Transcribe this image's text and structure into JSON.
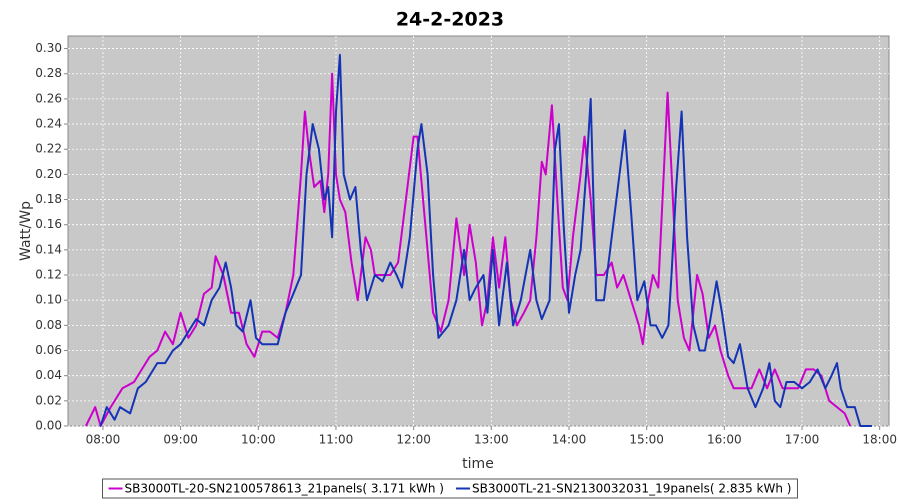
{
  "chart_data": {
    "type": "line",
    "title": "24-2-2023",
    "x_label": "time",
    "y_label": "Watt/Wp",
    "xlim": [
      7.55,
      18.12
    ],
    "ylim": [
      0,
      0.31
    ],
    "xticks": [
      {
        "value": 8,
        "label": "08:00"
      },
      {
        "value": 9,
        "label": "09:00"
      },
      {
        "value": 10,
        "label": "10:00"
      },
      {
        "value": 11,
        "label": "11:00"
      },
      {
        "value": 12,
        "label": "12:00"
      },
      {
        "value": 13,
        "label": "13:00"
      },
      {
        "value": 14,
        "label": "14:00"
      },
      {
        "value": 15,
        "label": "15:00"
      },
      {
        "value": 16,
        "label": "16:00"
      },
      {
        "value": 17,
        "label": "17:00"
      },
      {
        "value": 18,
        "label": "18:00"
      }
    ],
    "yticks": [
      {
        "value": 0,
        "label": "0.00"
      },
      {
        "value": 0.02,
        "label": "0.02"
      },
      {
        "value": 0.04,
        "label": "0.04"
      },
      {
        "value": 0.06,
        "label": "0.06"
      },
      {
        "value": 0.08,
        "label": "0.08"
      },
      {
        "value": 0.1,
        "label": "0.10"
      },
      {
        "value": 0.12,
        "label": "0.12"
      },
      {
        "value": 0.14,
        "label": "0.14"
      },
      {
        "value": 0.16,
        "label": "0.16"
      },
      {
        "value": 0.18,
        "label": "0.18"
      },
      {
        "value": 0.2,
        "label": "0.20"
      },
      {
        "value": 0.22,
        "label": "0.22"
      },
      {
        "value": 0.24,
        "label": "0.24"
      },
      {
        "value": 0.26,
        "label": "0.26"
      },
      {
        "value": 0.28,
        "label": "0.28"
      },
      {
        "value": 0.3,
        "label": "0.30"
      }
    ],
    "grid": true,
    "legend": "bottom",
    "series": [
      {
        "name": "SB3000TL-20-SN2100578613_21panels( 3.171 kWh )",
        "color": "#cc00cc",
        "x": [
          7.78,
          7.9,
          7.97,
          8.1,
          8.25,
          8.4,
          8.5,
          8.6,
          8.7,
          8.8,
          8.9,
          9.0,
          9.1,
          9.2,
          9.3,
          9.4,
          9.45,
          9.55,
          9.65,
          9.75,
          9.85,
          9.95,
          10.05,
          10.15,
          10.25,
          10.35,
          10.45,
          10.55,
          10.6,
          10.65,
          10.72,
          10.8,
          10.85,
          10.9,
          10.95,
          11.0,
          11.05,
          11.12,
          11.2,
          11.28,
          11.38,
          11.45,
          11.5,
          11.6,
          11.7,
          11.8,
          11.9,
          12.0,
          12.05,
          12.15,
          12.25,
          12.35,
          12.45,
          12.55,
          12.65,
          12.72,
          12.8,
          12.88,
          12.95,
          13.02,
          13.1,
          13.18,
          13.25,
          13.33,
          13.42,
          13.5,
          13.58,
          13.65,
          13.7,
          13.78,
          13.85,
          13.92,
          13.98,
          14.05,
          14.15,
          14.2,
          14.28,
          14.35,
          14.45,
          14.55,
          14.62,
          14.7,
          14.8,
          14.9,
          14.95,
          15.02,
          15.08,
          15.15,
          15.22,
          15.27,
          15.33,
          15.4,
          15.48,
          15.55,
          15.6,
          15.65,
          15.72,
          15.8,
          15.88,
          15.95,
          16.05,
          16.12,
          16.25,
          16.35,
          16.45,
          16.55,
          16.65,
          16.75,
          16.85,
          16.95,
          17.05,
          17.15,
          17.25,
          17.35,
          17.45,
          17.55,
          17.62
        ],
        "values": [
          0,
          0.015,
          0,
          0.015,
          0.03,
          0.035,
          0.045,
          0.055,
          0.06,
          0.075,
          0.065,
          0.09,
          0.07,
          0.08,
          0.105,
          0.11,
          0.135,
          0.12,
          0.09,
          0.09,
          0.065,
          0.055,
          0.075,
          0.075,
          0.07,
          0.09,
          0.12,
          0.2,
          0.25,
          0.22,
          0.19,
          0.195,
          0.17,
          0.2,
          0.28,
          0.2,
          0.18,
          0.17,
          0.13,
          0.1,
          0.15,
          0.14,
          0.12,
          0.12,
          0.12,
          0.13,
          0.18,
          0.23,
          0.23,
          0.16,
          0.09,
          0.075,
          0.1,
          0.165,
          0.12,
          0.16,
          0.13,
          0.08,
          0.1,
          0.15,
          0.11,
          0.15,
          0.1,
          0.08,
          0.09,
          0.1,
          0.15,
          0.21,
          0.2,
          0.255,
          0.18,
          0.11,
          0.1,
          0.15,
          0.2,
          0.23,
          0.18,
          0.12,
          0.12,
          0.13,
          0.11,
          0.12,
          0.1,
          0.08,
          0.065,
          0.1,
          0.12,
          0.11,
          0.2,
          0.265,
          0.19,
          0.1,
          0.07,
          0.06,
          0.09,
          0.12,
          0.105,
          0.07,
          0.08,
          0.06,
          0.04,
          0.03,
          0.03,
          0.03,
          0.045,
          0.03,
          0.045,
          0.03,
          0.03,
          0.03,
          0.045,
          0.045,
          0.04,
          0.02,
          0.015,
          0.01,
          0
        ]
      },
      {
        "name": "SB3000TL-21-SN2130032031_19panels( 2.835 kWh )",
        "color": "#1533b5",
        "x": [
          7.97,
          8.05,
          8.15,
          8.22,
          8.35,
          8.45,
          8.55,
          8.7,
          8.8,
          8.9,
          9.0,
          9.1,
          9.2,
          9.3,
          9.4,
          9.5,
          9.58,
          9.65,
          9.72,
          9.8,
          9.9,
          9.97,
          10.05,
          10.15,
          10.25,
          10.35,
          10.45,
          10.55,
          10.62,
          10.7,
          10.78,
          10.85,
          10.9,
          10.95,
          11.0,
          11.05,
          11.1,
          11.18,
          11.25,
          11.32,
          11.4,
          11.5,
          11.6,
          11.7,
          11.78,
          11.85,
          11.95,
          12.05,
          12.1,
          12.18,
          12.25,
          12.32,
          12.45,
          12.55,
          12.65,
          12.72,
          12.8,
          12.9,
          12.95,
          13.02,
          13.1,
          13.2,
          13.28,
          13.38,
          13.5,
          13.58,
          13.65,
          13.75,
          13.82,
          13.87,
          13.93,
          14.0,
          14.08,
          14.15,
          14.22,
          14.28,
          14.35,
          14.45,
          14.55,
          14.65,
          14.72,
          14.8,
          14.88,
          14.97,
          15.05,
          15.12,
          15.2,
          15.28,
          15.32,
          15.38,
          15.45,
          15.52,
          15.6,
          15.68,
          15.75,
          15.82,
          15.9,
          15.97,
          16.05,
          16.12,
          16.2,
          16.3,
          16.4,
          16.5,
          16.58,
          16.65,
          16.72,
          16.8,
          16.9,
          17.0,
          17.1,
          17.2,
          17.3,
          17.38,
          17.45,
          17.5,
          17.58,
          17.68,
          17.75,
          17.9
        ],
        "values": [
          0,
          0.015,
          0.005,
          0.015,
          0.01,
          0.03,
          0.035,
          0.05,
          0.05,
          0.06,
          0.065,
          0.075,
          0.085,
          0.08,
          0.1,
          0.11,
          0.13,
          0.11,
          0.08,
          0.075,
          0.1,
          0.07,
          0.065,
          0.065,
          0.065,
          0.09,
          0.105,
          0.12,
          0.2,
          0.24,
          0.22,
          0.18,
          0.19,
          0.15,
          0.25,
          0.295,
          0.2,
          0.18,
          0.19,
          0.14,
          0.1,
          0.12,
          0.115,
          0.13,
          0.12,
          0.11,
          0.15,
          0.22,
          0.24,
          0.2,
          0.12,
          0.07,
          0.08,
          0.1,
          0.14,
          0.1,
          0.11,
          0.12,
          0.09,
          0.14,
          0.08,
          0.13,
          0.08,
          0.1,
          0.14,
          0.1,
          0.085,
          0.1,
          0.22,
          0.24,
          0.16,
          0.09,
          0.12,
          0.14,
          0.2,
          0.26,
          0.1,
          0.1,
          0.15,
          0.2,
          0.235,
          0.17,
          0.1,
          0.115,
          0.08,
          0.08,
          0.07,
          0.08,
          0.12,
          0.19,
          0.25,
          0.15,
          0.08,
          0.06,
          0.06,
          0.085,
          0.115,
          0.09,
          0.055,
          0.05,
          0.065,
          0.03,
          0.015,
          0.03,
          0.05,
          0.02,
          0.015,
          0.035,
          0.035,
          0.03,
          0.035,
          0.045,
          0.03,
          0.04,
          0.05,
          0.03,
          0.015,
          0.015,
          0,
          0
        ]
      }
    ]
  }
}
